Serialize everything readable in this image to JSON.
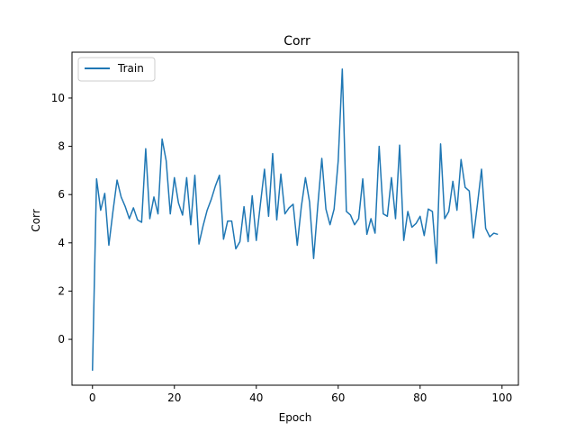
{
  "chart_data": {
    "type": "line",
    "title": "Corr",
    "xlabel": "Epoch",
    "ylabel": "Corr",
    "xlim": [
      -5,
      104
    ],
    "ylim": [
      -1.9,
      11.9
    ],
    "xticks": [
      0,
      20,
      40,
      60,
      80,
      100
    ],
    "yticks": [
      0,
      2,
      4,
      6,
      8,
      10
    ],
    "grid": false,
    "legend_position": "top-left",
    "series": [
      {
        "name": "Train",
        "color": "#1f77b4",
        "x": [
          0,
          1,
          2,
          3,
          4,
          5,
          6,
          7,
          8,
          9,
          10,
          11,
          12,
          13,
          14,
          15,
          16,
          17,
          18,
          19,
          20,
          21,
          22,
          23,
          24,
          25,
          26,
          27,
          28,
          29,
          30,
          31,
          32,
          33,
          34,
          35,
          36,
          37,
          38,
          39,
          40,
          41,
          42,
          43,
          44,
          45,
          46,
          47,
          48,
          49,
          50,
          51,
          52,
          53,
          54,
          55,
          56,
          57,
          58,
          59,
          60,
          61,
          62,
          63,
          64,
          65,
          66,
          67,
          68,
          69,
          70,
          71,
          72,
          73,
          74,
          75,
          76,
          77,
          78,
          79,
          80,
          81,
          82,
          83,
          84,
          85,
          86,
          87,
          88,
          89,
          90,
          91,
          92,
          93,
          94,
          95,
          96,
          97,
          98,
          99
        ],
        "values": [
          -1.3,
          6.65,
          5.35,
          6.05,
          3.9,
          5.3,
          6.6,
          5.9,
          5.5,
          5.0,
          5.45,
          4.95,
          4.85,
          7.9,
          5.0,
          5.9,
          5.2,
          8.3,
          7.4,
          5.2,
          6.7,
          5.65,
          5.15,
          6.7,
          4.75,
          6.8,
          3.95,
          4.7,
          5.35,
          5.8,
          6.35,
          6.8,
          4.15,
          4.9,
          4.9,
          3.75,
          4.05,
          5.5,
          4.05,
          5.95,
          4.1,
          5.6,
          7.05,
          5.1,
          7.7,
          4.95,
          6.85,
          5.2,
          5.45,
          5.6,
          3.9,
          5.5,
          6.7,
          5.7,
          3.35,
          5.5,
          7.5,
          5.4,
          4.75,
          5.4,
          7.4,
          11.2,
          5.3,
          5.15,
          4.75,
          5.0,
          6.65,
          4.35,
          5.0,
          4.4,
          8.0,
          5.2,
          5.1,
          6.7,
          5.0,
          8.05,
          4.1,
          5.3,
          4.65,
          4.8,
          5.1,
          4.3,
          5.4,
          5.3,
          3.15,
          8.1,
          5.0,
          5.3,
          6.55,
          5.35,
          7.45,
          6.3,
          6.15,
          4.2,
          5.6,
          7.05,
          4.6,
          4.25,
          4.4,
          4.35
        ]
      }
    ]
  }
}
